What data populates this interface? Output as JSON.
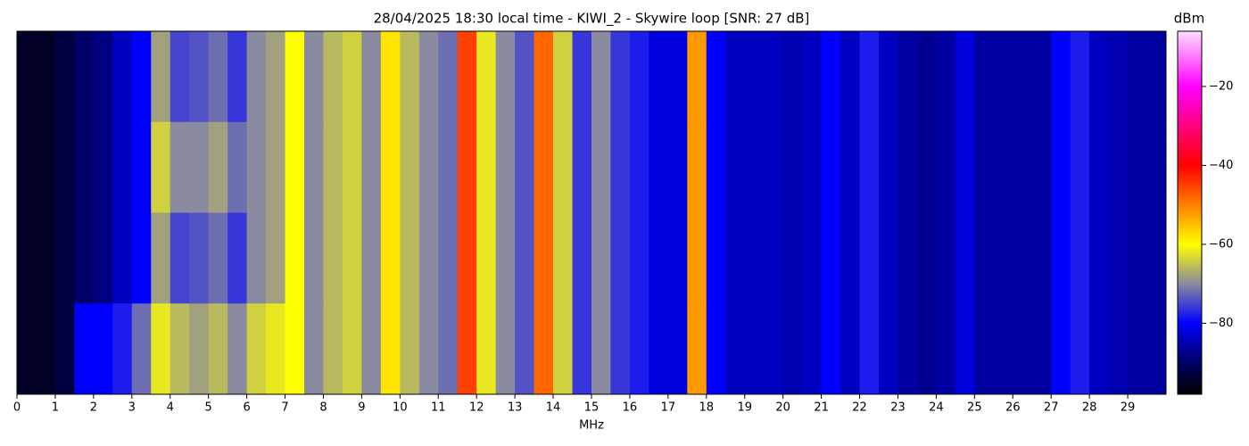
{
  "chart_data": {
    "type": "heatmap",
    "title": "28/04/2025 18:30 local time - KIWI_2 - Skywire loop [SNR: 27 dB]",
    "x_label": "MHz",
    "colorbar_label": "dBm",
    "xlim": [
      0,
      30
    ],
    "xticks": [
      0,
      1,
      2,
      3,
      4,
      5,
      6,
      7,
      8,
      9,
      10,
      11,
      12,
      13,
      14,
      15,
      16,
      17,
      18,
      19,
      20,
      21,
      22,
      23,
      24,
      25,
      26,
      27,
      28,
      29
    ],
    "bins": [
      0,
      0.5,
      1,
      1.5,
      2,
      2.5,
      3,
      3.5,
      4,
      4.5,
      5,
      5.5,
      6,
      6.5,
      7,
      7.5,
      8,
      8.5,
      9,
      9.5,
      10,
      10.5,
      11,
      11.5,
      12,
      12.5,
      13,
      13.5,
      14,
      14.5,
      15,
      15.5,
      16,
      16.5,
      17,
      17.5,
      18,
      18.5,
      19,
      19.5,
      20,
      20.5,
      21,
      21.5,
      22,
      22.5,
      23,
      23.5,
      24,
      24.5,
      25,
      25.5,
      26,
      26.5,
      27,
      27.5,
      28,
      28.5,
      29,
      29.5,
      30
    ],
    "values": [
      [
        -95,
        -95,
        -93,
        -90,
        -88,
        -84,
        -80,
        -68,
        -75,
        -74,
        -72,
        -76,
        -70,
        -68,
        -60,
        -70,
        -66,
        -64,
        -70,
        -58,
        -66,
        -70,
        -72,
        -45,
        -62,
        -70,
        -74,
        -48,
        -64,
        -76,
        -70,
        -76,
        -78,
        -82,
        -82,
        -52,
        -80,
        -84,
        -84,
        -84,
        -85,
        -84,
        -80,
        -84,
        -78,
        -84,
        -86,
        -87,
        -86,
        -82,
        -86,
        -86,
        -86,
        -86,
        -80,
        -78,
        -84,
        -85,
        -86,
        -86
      ],
      [
        -95,
        -95,
        -93,
        -90,
        -88,
        -84,
        -80,
        -64,
        -70,
        -70,
        -68,
        -72,
        -70,
        -68,
        -60,
        -70,
        -66,
        -64,
        -70,
        -58,
        -66,
        -70,
        -72,
        -45,
        -62,
        -70,
        -74,
        -48,
        -64,
        -76,
        -70,
        -76,
        -78,
        -82,
        -82,
        -52,
        -80,
        -84,
        -84,
        -84,
        -85,
        -84,
        -80,
        -84,
        -78,
        -84,
        -86,
        -87,
        -86,
        -82,
        -86,
        -86,
        -86,
        -86,
        -80,
        -78,
        -84,
        -85,
        -86,
        -86
      ],
      [
        -95,
        -95,
        -93,
        -90,
        -88,
        -84,
        -80,
        -68,
        -75,
        -74,
        -72,
        -76,
        -70,
        -68,
        -60,
        -70,
        -66,
        -64,
        -70,
        -58,
        -66,
        -70,
        -72,
        -45,
        -62,
        -70,
        -74,
        -48,
        -64,
        -76,
        -70,
        -76,
        -78,
        -82,
        -82,
        -52,
        -80,
        -84,
        -84,
        -84,
        -85,
        -84,
        -80,
        -84,
        -78,
        -84,
        -86,
        -87,
        -86,
        -82,
        -86,
        -86,
        -86,
        -86,
        -80,
        -78,
        -84,
        -85,
        -86,
        -86
      ],
      [
        -95,
        -95,
        -93,
        -80,
        -80,
        -78,
        -72,
        -62,
        -66,
        -68,
        -66,
        -70,
        -64,
        -62,
        -60,
        -70,
        -66,
        -64,
        -70,
        -58,
        -66,
        -70,
        -72,
        -45,
        -62,
        -70,
        -74,
        -48,
        -64,
        -76,
        -70,
        -76,
        -78,
        -82,
        -82,
        -52,
        -80,
        -84,
        -84,
        -84,
        -85,
        -84,
        -80,
        -84,
        -78,
        -84,
        -86,
        -87,
        -86,
        -82,
        -86,
        -86,
        -86,
        -86,
        -80,
        -78,
        -84,
        -85,
        -86,
        -86
      ]
    ],
    "zlim": [
      -98,
      -6
    ],
    "zticks": [
      {
        "value": -20,
        "label": "−20"
      },
      {
        "value": -40,
        "label": "−40"
      },
      {
        "value": -60,
        "label": "−60"
      },
      {
        "value": -80,
        "label": "−80"
      }
    ],
    "colorscale": [
      [
        -98,
        "#000000"
      ],
      [
        -88,
        "#000080"
      ],
      [
        -80,
        "#0000ff"
      ],
      [
        -70,
        "#8a8aa0"
      ],
      [
        -60,
        "#ffff00"
      ],
      [
        -40,
        "#ff0000"
      ],
      [
        -20,
        "#ff00ff"
      ],
      [
        -6,
        "#ffddff"
      ]
    ]
  }
}
